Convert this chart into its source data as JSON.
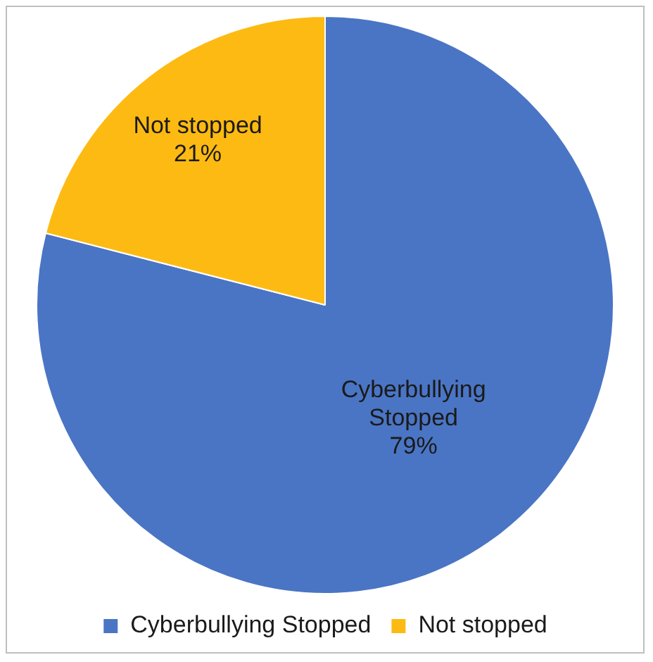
{
  "chart_data": {
    "type": "pie",
    "categories": [
      "Cyberbullying Stopped",
      "Not stopped"
    ],
    "values": [
      79,
      21
    ],
    "colors": [
      "#4a75c5",
      "#fdba12"
    ],
    "value_labels": [
      "79%",
      "21%"
    ],
    "legend": "bottom"
  }
}
